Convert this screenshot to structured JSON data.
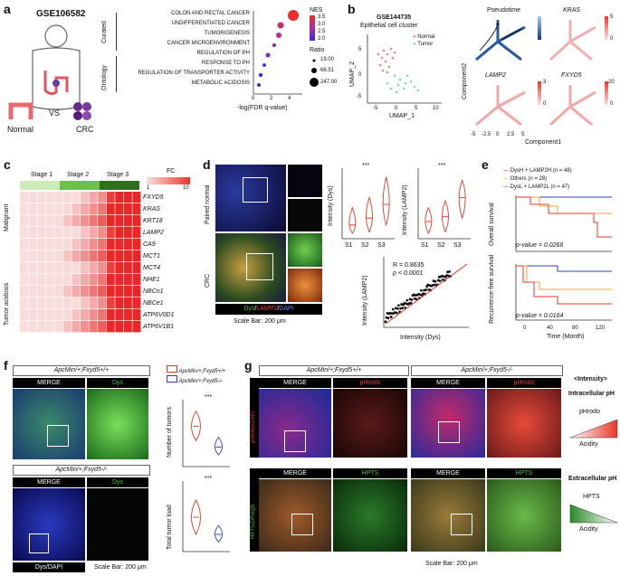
{
  "panels": {
    "a": {
      "letter": "a",
      "dataset": "GSE106582",
      "normal_label": "Normal",
      "vs_label": "VS",
      "crc_label": "CRC",
      "group_curated": "Curated",
      "group_ontology": "Ontology",
      "terms": [
        "COLON AND RECTAL CANCER",
        "UNDIFFERENTIATED CANCER",
        "TUMORIGENESIS",
        "CANCER MICROENVIRONMENT",
        "REGULATION OF PH",
        "RESPONSE TO PH",
        "REGULATION OF TRANSPORTER ACTIVITY",
        "METABOLIC ACIDOSIS"
      ],
      "xlabel": "-log(FDR q-value)",
      "x_ticks": [
        "0",
        "2",
        "4"
      ],
      "nes_title": "NES",
      "nes_ticks": [
        "3.5",
        "3.0",
        "2.5",
        "2.0"
      ],
      "ratio_title": "Ratio",
      "ratio_values": [
        "19.00",
        "68.51",
        "247.00"
      ]
    },
    "b": {
      "letter": "b",
      "dataset": "GSE144735",
      "subtitle": "Epithelial cell cluster",
      "legend": [
        "Normal",
        "Tumor"
      ],
      "umap_x": "UMAP_1",
      "umap_y": "UMAP_2",
      "umap_xticks": [
        "-5",
        "0",
        "5",
        "10"
      ],
      "umap_yticks": [
        "5",
        "0",
        "-5"
      ],
      "traj_titles": [
        "Pseudotime",
        "KRAS",
        "LAMP2",
        "FXYD5"
      ],
      "traj_scale_max": [
        "",
        "5",
        "3",
        "20"
      ],
      "traj_scale_min": [
        "",
        "0",
        "0",
        "0"
      ],
      "comp1": "Component1",
      "comp2": "Component2",
      "comp_xticks": [
        "-5",
        "-2.5",
        "0",
        "2.5",
        "5"
      ],
      "comp_yticks": [
        "5",
        "0",
        "-5"
      ]
    },
    "c": {
      "letter": "c",
      "stages": [
        "Stage 1",
        "Stage 2",
        "Stage 3"
      ],
      "fc_title": "FC",
      "fc_ticks": [
        "1",
        "10"
      ],
      "group_malignant": "Malignant",
      "group_acidosis": "Tumor acidosis",
      "genes": [
        "FXYD5",
        "KRAS",
        "KRT18",
        "LAMP2",
        "CA9",
        "MCT1",
        "MCT4",
        "NHE1",
        "NBCn1",
        "NBCe1",
        "ATP6V0D1",
        "ATP6V1B1"
      ]
    },
    "d": {
      "letter": "d",
      "row_labels": [
        "Paired normal",
        "CRC"
      ],
      "stain_dys": "Dys",
      "stain_lamp2": "LAMP2",
      "stain_dapi": "DAPI",
      "scale_bar": "Scale Bar: 200 μm",
      "violin1_ylabel": "Intensity (Dys)",
      "violin2_ylabel": "Intensity (LAMP2)",
      "stage_labels": [
        "S1",
        "S2",
        "S3"
      ],
      "sig": "***",
      "sig2": "**",
      "sig3": "*",
      "violin1_yticks": [
        "8",
        "6",
        "4",
        "2",
        "0"
      ],
      "violin2_yticks": [
        "8",
        "6",
        "4",
        "2",
        "0"
      ],
      "r_text": "R = 0.8635",
      "p_text": "p < 0.0001",
      "scatter_xlabel": "Intensity (Dys)",
      "scatter_ylabel": "Intensity (LAMP2)",
      "scatter_xticks": [
        "0",
        "2",
        "4",
        "6",
        "8",
        "10"
      ],
      "scatter_yticks": [
        "8",
        "6",
        "4",
        "2",
        "0"
      ]
    },
    "e": {
      "letter": "e",
      "legend": [
        "DysH + LAMP2H (n = 48)",
        "Others (n = 28)",
        "DysL + LAMP2L (n = 47)"
      ],
      "os_ylabel": "Overall survival",
      "rfs_ylabel": "Recurrence-free survival",
      "os_p": "p-value = 0.0266",
      "rfs_p": "p-value = 0.0164",
      "xlabel": "Time (Month)",
      "x_ticks": [
        "0",
        "40",
        "80",
        "120"
      ],
      "os_yticks": [
        "1.00",
        "0.95",
        "0.90",
        "0.85",
        "0.80",
        "0.75"
      ],
      "rfs_yticks": [
        "1.00",
        "0.95",
        "0.90",
        "0.85",
        "0.80",
        "0.75",
        "0.70"
      ]
    },
    "f": {
      "letter": "f",
      "geno_wt": "ApcMin/+;Fxyd5+/+",
      "geno_ko": "ApcMin/+;Fxyd5-/-",
      "merge": "MERGE",
      "dys": "Dys",
      "stain_caption": "Dys/DAPI",
      "scale_bar": "Scale Bar: 200 μm",
      "violin1_ylabel": "Number of tumors",
      "violin2_ylabel": "Total tumor load",
      "sig": "***",
      "v1_yticks": [
        "150",
        "100",
        "50",
        "0"
      ],
      "v2_yticks": [
        "300",
        "200",
        "100",
        "0"
      ]
    },
    "g": {
      "letter": "g",
      "geno_wt": "ApcMin/+;Fxyd5+/+",
      "geno_ko": "ApcMin/+;Fxyd5-/-",
      "merge": "MERGE",
      "phrodo": "pHrodo",
      "hpts": "HPTS",
      "row1_side": "pHrodo/DAPI",
      "row2_side": "HPTS/DRAQ5",
      "scale_bar": "Scale Bar: 200 μm",
      "intensity_title": "<Intensity>",
      "intra_title": "Intracellular pH",
      "intra_probe": "pHrodo",
      "intra_acid": "Acidity",
      "extra_title": "Extracellular pH",
      "extra_probe": "HPTS",
      "extra_acid": "Acidity"
    }
  },
  "colors": {
    "red": "#e8372a",
    "blue": "#2d3fc8",
    "orange": "#f2a33a",
    "green": "#3fbf3f",
    "nes_high": "#ef2b2b",
    "nes_low": "#3b2bd8"
  }
}
